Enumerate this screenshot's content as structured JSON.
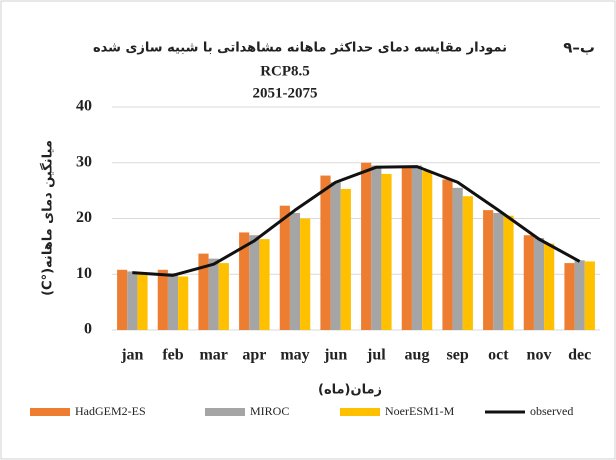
{
  "chart_data": {
    "type": "bar",
    "figure_label": "۹–ب",
    "title": "نمودار مقایسه دمای حداکثر ماهانه مشاهداتی با شبیه سازی شده",
    "subtitle": [
      "RCP8.5",
      "2051-2075"
    ],
    "x_label": "زمان(ماه)",
    "y_label": "میانگین دمای ماهانه(°C)",
    "categories": [
      "jan",
      "feb",
      "mar",
      "apr",
      "may",
      "jun",
      "jul",
      "aug",
      "sep",
      "oct",
      "nov",
      "dec"
    ],
    "series": [
      {
        "name": "HadGEM2-ES",
        "color": "#ed7d31",
        "values": [
          10.8,
          10.8,
          13.7,
          17.5,
          22.3,
          27.7,
          30,
          29.5,
          27,
          21.5,
          17,
          12
        ]
      },
      {
        "name": "MIROC",
        "color": "#a5a5a5",
        "values": [
          10.5,
          10.2,
          12.8,
          17,
          21,
          26.5,
          29.5,
          29.5,
          25.5,
          21,
          16.5,
          12.5
        ]
      },
      {
        "name": "NoerESM1-M",
        "color": "#ffc000",
        "values": [
          10.2,
          9.6,
          12,
          16.3,
          20,
          25.3,
          28,
          28.5,
          24,
          20.5,
          15.5,
          12.3
        ]
      },
      {
        "name": "observed",
        "color": "#111111",
        "type": "line",
        "values": [
          10.3,
          9.8,
          11.8,
          16,
          21.5,
          26.5,
          29.2,
          29.3,
          26.5,
          21.5,
          16.3,
          12.3
        ]
      }
    ],
    "ylim": [
      0,
      40
    ],
    "yticks": [
      0,
      10,
      20,
      30,
      40
    ],
    "grid": true
  }
}
